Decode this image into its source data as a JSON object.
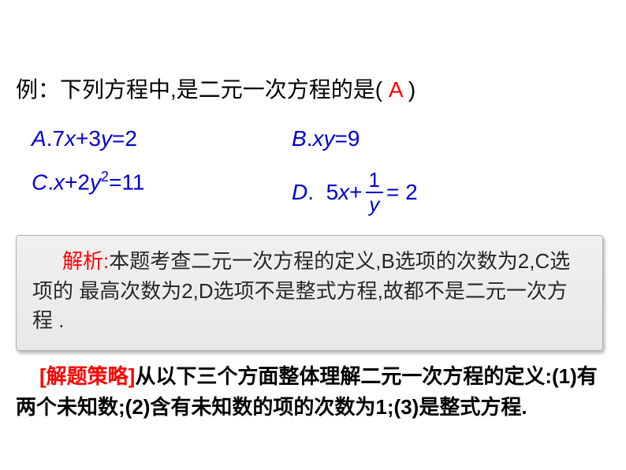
{
  "question": {
    "prefix": "例：下列方程中,是二元一次方程的是(",
    "answer": "A",
    "suffix": ")"
  },
  "options": {
    "a": {
      "letter": "A",
      "expr_prefix": "7",
      "v1": "x",
      "mid": "+3",
      "v2": "y",
      "rhs": "=2"
    },
    "b": {
      "letter": "B",
      "v1": "x",
      "v2": "y",
      "rhs": "=9"
    },
    "c": {
      "letter": "C",
      "v1": "x",
      "mid": "+2",
      "v2": "y",
      "sup": "2",
      "rhs": "=11"
    },
    "d": {
      "letter": "D",
      "coef": "5",
      "v1": "x",
      "plus": " + ",
      "num": "1",
      "den": "y",
      "rhs": " = 2"
    }
  },
  "explanation": {
    "label": "解析:",
    "text": "本题考查二元一次方程的定义,B选项的次数为2,C选项的 最高次数为2,D选项不是整式方程,故都不是二元一次方程 ."
  },
  "strategy": {
    "label": "[解题策略]",
    "text": "从以下三个方面整体理解二元一次方程的定义:(1)有两个未知数;(2)含有未知数的项的次数为1;(3)是整式方程."
  },
  "colors": {
    "text": "#000000",
    "option": "#0000cc",
    "answer": "#ff0000",
    "label": "#ff0000",
    "box_bg": "#e8e8e8",
    "box_border": "#b0b0b0"
  },
  "fonts": {
    "body_size": 28,
    "box_size": 26,
    "strategy_size": 26
  }
}
